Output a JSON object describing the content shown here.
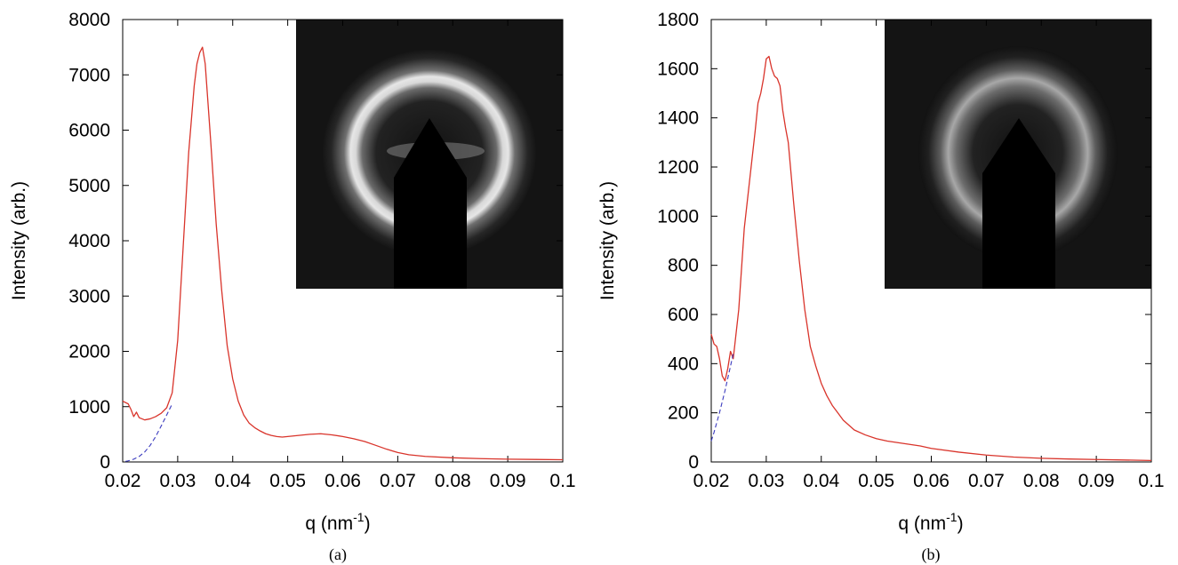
{
  "figure": {
    "panel_a_caption": "(a)",
    "panel_b_caption": "(b)"
  },
  "chart_data": [
    {
      "type": "line",
      "panel": "(a)",
      "title": "",
      "xlabel": "q (nm",
      "xlabel_sup": "-1",
      "xlabel_close": ")",
      "ylabel": "Intensity (arb.)",
      "xlim": [
        0.02,
        0.1
      ],
      "ylim": [
        0,
        8000
      ],
      "xticks": [
        0.02,
        0.03,
        0.04,
        0.05,
        0.06,
        0.07,
        0.08,
        0.09,
        0.1
      ],
      "xtick_labels": [
        "0.02",
        "0.03",
        "0.04",
        "0.05",
        "0.06",
        "0.07",
        "0.08",
        "0.09",
        "0.1"
      ],
      "yticks": [
        0,
        1000,
        2000,
        3000,
        4000,
        5000,
        6000,
        7000,
        8000
      ],
      "ytick_labels": [
        "0",
        "1000",
        "2000",
        "3000",
        "4000",
        "5000",
        "6000",
        "7000",
        "8000"
      ],
      "grid": false,
      "inset": "2D scattering pattern image with ring and beamstop",
      "series": [
        {
          "style": "solid",
          "color": "#d9342b",
          "x": [
            0.02,
            0.021,
            0.0215,
            0.022,
            0.0225,
            0.023,
            0.0235,
            0.024,
            0.025,
            0.026,
            0.027,
            0.028,
            0.029,
            0.03,
            0.031,
            0.032,
            0.033,
            0.0335,
            0.034,
            0.0345,
            0.035,
            0.0355,
            0.036,
            0.037,
            0.038,
            0.039,
            0.04,
            0.041,
            0.042,
            0.043,
            0.044,
            0.045,
            0.046,
            0.047,
            0.048,
            0.049,
            0.05,
            0.052,
            0.054,
            0.056,
            0.058,
            0.06,
            0.062,
            0.064,
            0.066,
            0.068,
            0.07,
            0.072,
            0.075,
            0.08,
            0.085,
            0.09,
            0.095,
            0.1
          ],
          "y": [
            1100,
            1050,
            950,
            820,
            900,
            800,
            780,
            760,
            780,
            820,
            880,
            980,
            1250,
            2200,
            3900,
            5600,
            6800,
            7200,
            7400,
            7500,
            7200,
            6500,
            5800,
            4300,
            3100,
            2100,
            1500,
            1100,
            850,
            700,
            620,
            560,
            510,
            480,
            460,
            450,
            460,
            480,
            500,
            510,
            490,
            460,
            420,
            370,
            300,
            230,
            170,
            130,
            100,
            75,
            60,
            50,
            45,
            40
          ]
        },
        {
          "style": "dashed",
          "color": "#3b3bbf",
          "x": [
            0.0205,
            0.021,
            0.022,
            0.023,
            0.024,
            0.025,
            0.026,
            0.027,
            0.028,
            0.029
          ],
          "y": [
            10,
            20,
            50,
            100,
            180,
            300,
            460,
            650,
            850,
            1050
          ]
        }
      ]
    },
    {
      "type": "line",
      "panel": "(b)",
      "title": "",
      "xlabel": "q (nm",
      "xlabel_sup": "-1",
      "xlabel_close": ")",
      "ylabel": "Intensity (arb.)",
      "xlim": [
        0.02,
        0.1
      ],
      "ylim": [
        0,
        1800
      ],
      "xticks": [
        0.02,
        0.03,
        0.04,
        0.05,
        0.06,
        0.07,
        0.08,
        0.09,
        0.1
      ],
      "xtick_labels": [
        "0.02",
        "0.03",
        "0.04",
        "0.05",
        "0.06",
        "0.07",
        "0.08",
        "0.09",
        "0.1"
      ],
      "yticks": [
        0,
        200,
        400,
        600,
        800,
        1000,
        1200,
        1400,
        1600,
        1800
      ],
      "ytick_labels": [
        "0",
        "200",
        "400",
        "600",
        "800",
        "1000",
        "1200",
        "1400",
        "1600",
        "1800"
      ],
      "grid": false,
      "inset": "2D scattering pattern image with faint ring and beamstop",
      "series": [
        {
          "style": "solid",
          "color": "#d9342b",
          "x": [
            0.02,
            0.0205,
            0.021,
            0.0215,
            0.022,
            0.0225,
            0.023,
            0.0235,
            0.024,
            0.025,
            0.026,
            0.027,
            0.028,
            0.0285,
            0.029,
            0.0295,
            0.03,
            0.0305,
            0.031,
            0.0315,
            0.032,
            0.0325,
            0.033,
            0.0335,
            0.034,
            0.035,
            0.036,
            0.037,
            0.038,
            0.039,
            0.04,
            0.041,
            0.042,
            0.043,
            0.044,
            0.045,
            0.046,
            0.048,
            0.05,
            0.052,
            0.055,
            0.058,
            0.06,
            0.065,
            0.07,
            0.075,
            0.08,
            0.085,
            0.09,
            0.095,
            0.1
          ],
          "y": [
            520,
            480,
            470,
            420,
            350,
            330,
            380,
            450,
            420,
            620,
            950,
            1150,
            1350,
            1460,
            1500,
            1560,
            1640,
            1650,
            1600,
            1570,
            1560,
            1530,
            1430,
            1360,
            1300,
            1050,
            820,
            620,
            470,
            390,
            320,
            270,
            230,
            200,
            170,
            150,
            130,
            110,
            95,
            85,
            75,
            65,
            55,
            40,
            28,
            20,
            15,
            12,
            10,
            8,
            6
          ]
        },
        {
          "style": "dashed",
          "color": "#3b3bbf",
          "x": [
            0.02,
            0.0205,
            0.021,
            0.0215,
            0.022,
            0.0225,
            0.023,
            0.0235,
            0.024
          ],
          "y": [
            85,
            120,
            160,
            200,
            245,
            290,
            340,
            390,
            440
          ]
        }
      ]
    }
  ]
}
